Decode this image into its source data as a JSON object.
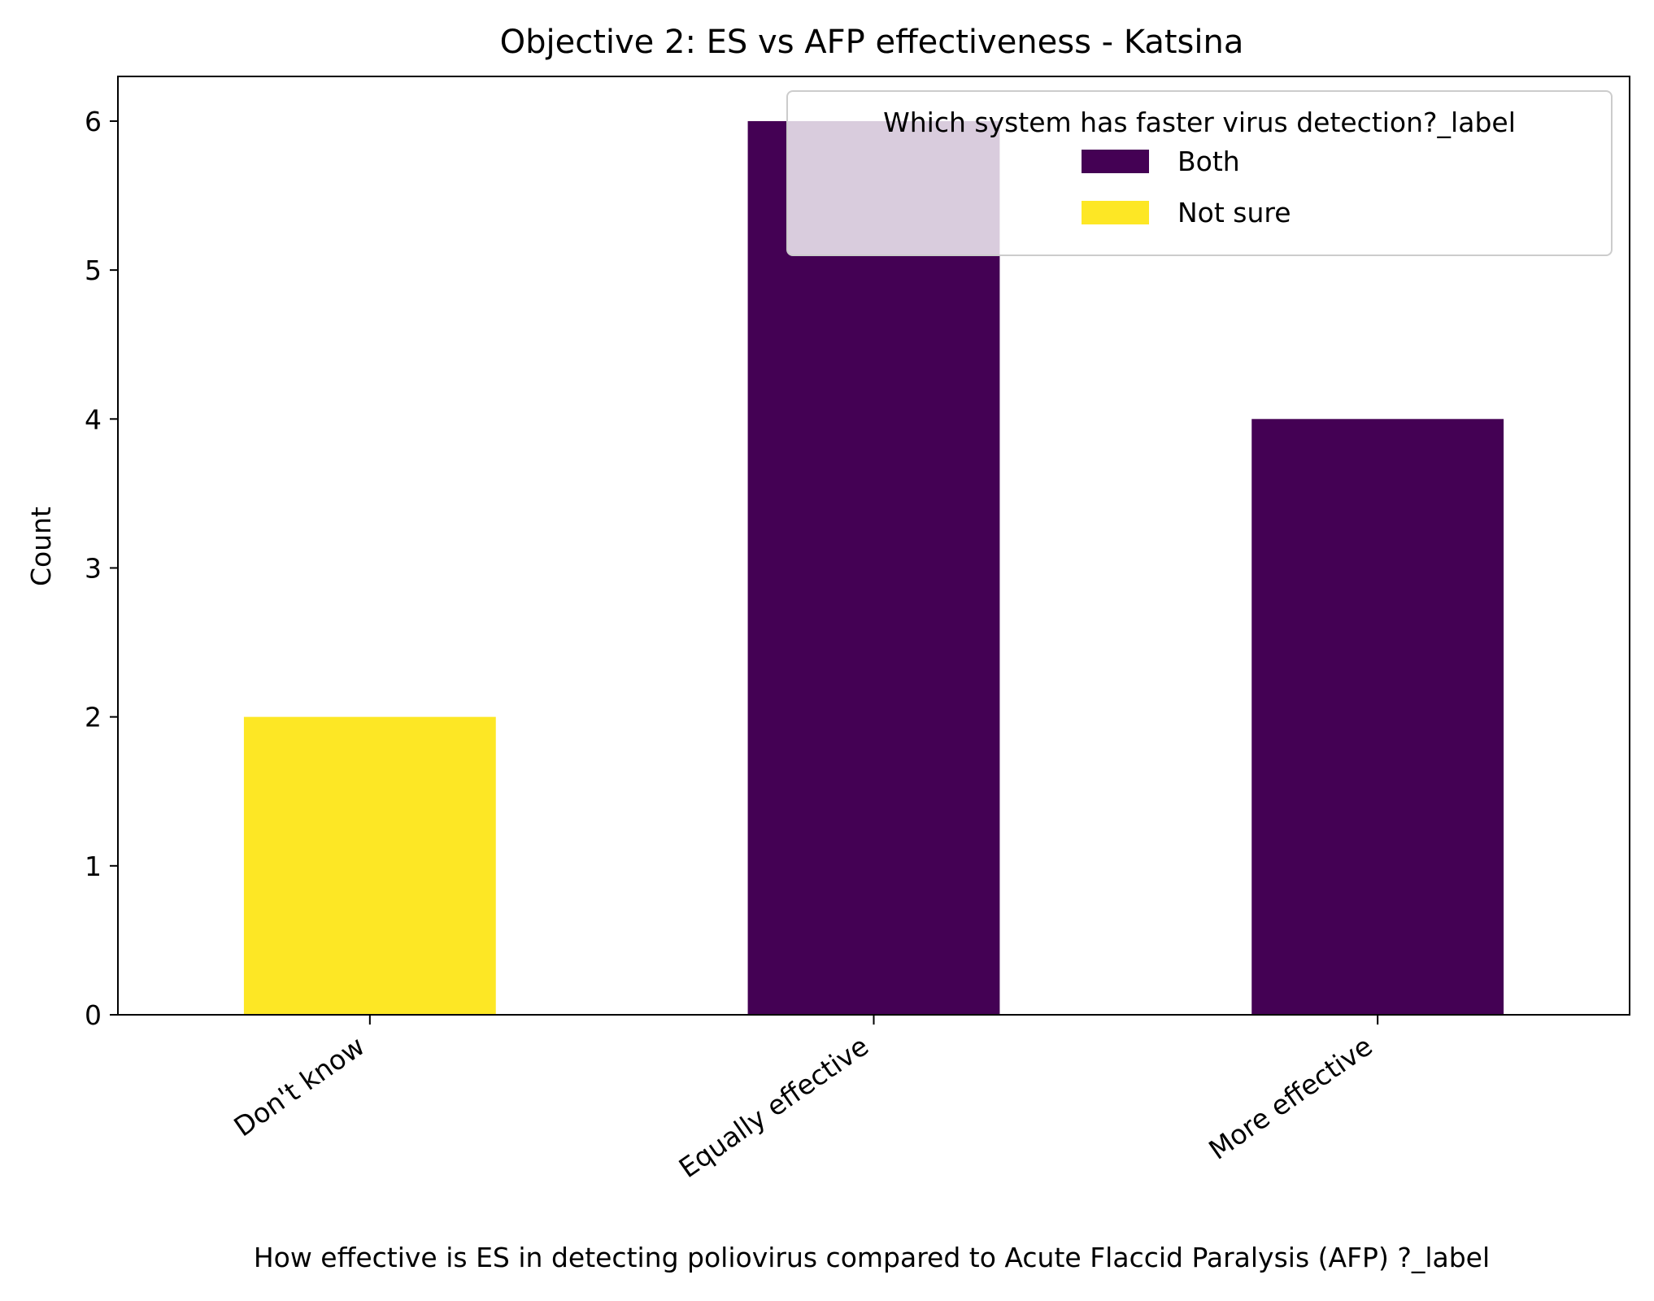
{
  "chart_data": {
    "type": "bar",
    "stacked": true,
    "title": "Objective 2: ES vs AFP effectiveness - Katsina",
    "xlabel": "How effective is ES in detecting poliovirus compared to  Acute Flaccid Paralysis (AFP) ?_label",
    "ylabel": "Count",
    "categories": [
      "Don't know",
      "Equally effective",
      "More effective"
    ],
    "series": [
      {
        "name": "Both",
        "color": "#440154",
        "values": [
          0,
          6,
          4
        ]
      },
      {
        "name": "Not sure",
        "color": "#fde725",
        "values": [
          2,
          0,
          0
        ]
      }
    ],
    "ylim": [
      0,
      6.3
    ],
    "yticks": [
      "0",
      "1",
      "2",
      "3",
      "4",
      "5",
      "6"
    ],
    "grid": false,
    "legend": {
      "title": "Which system has faster virus detection?_label",
      "placement": "top-right"
    }
  }
}
